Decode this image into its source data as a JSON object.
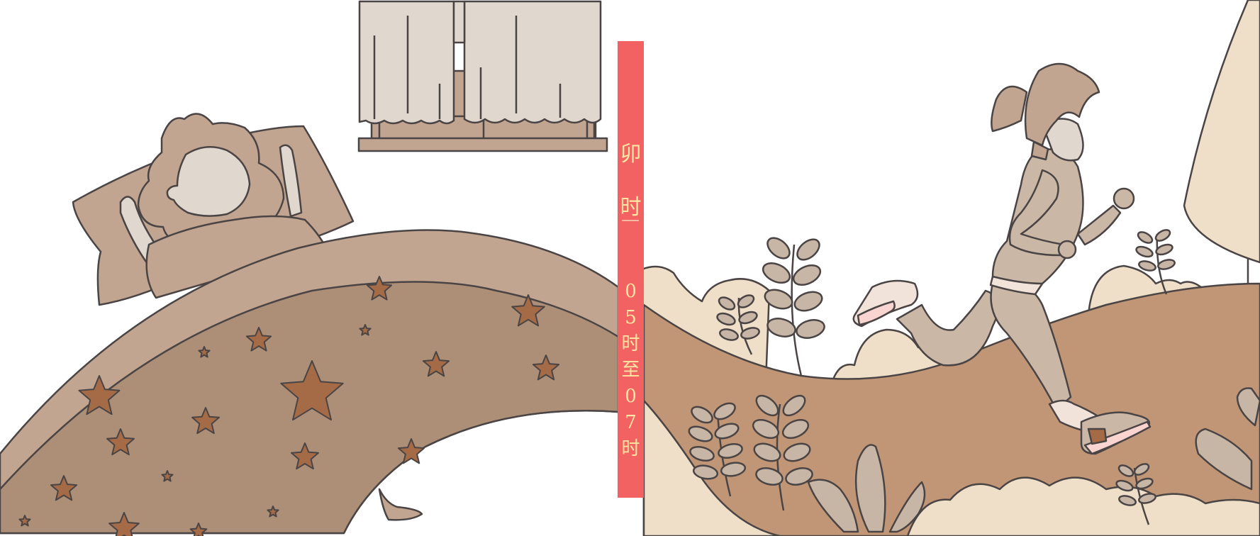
{
  "band": {
    "label_1": "卯",
    "label_2": "时",
    "chars": [
      "0",
      "5",
      "时",
      "至",
      "0",
      "7",
      "时"
    ]
  },
  "colors": {
    "band": "#f26262",
    "band_text": "#ffe6a3",
    "outline": "#4a4444",
    "blanket_light": "#c1a590",
    "blanket_dark": "#ad8f78",
    "star": "#a56b47",
    "hill": "#c19676",
    "bush": "#efdfc9"
  },
  "icons": [
    "sleeping-person-icon",
    "window-curtain-icon",
    "running-woman-icon",
    "plant-icon",
    "tree-icon",
    "star-icon"
  ]
}
